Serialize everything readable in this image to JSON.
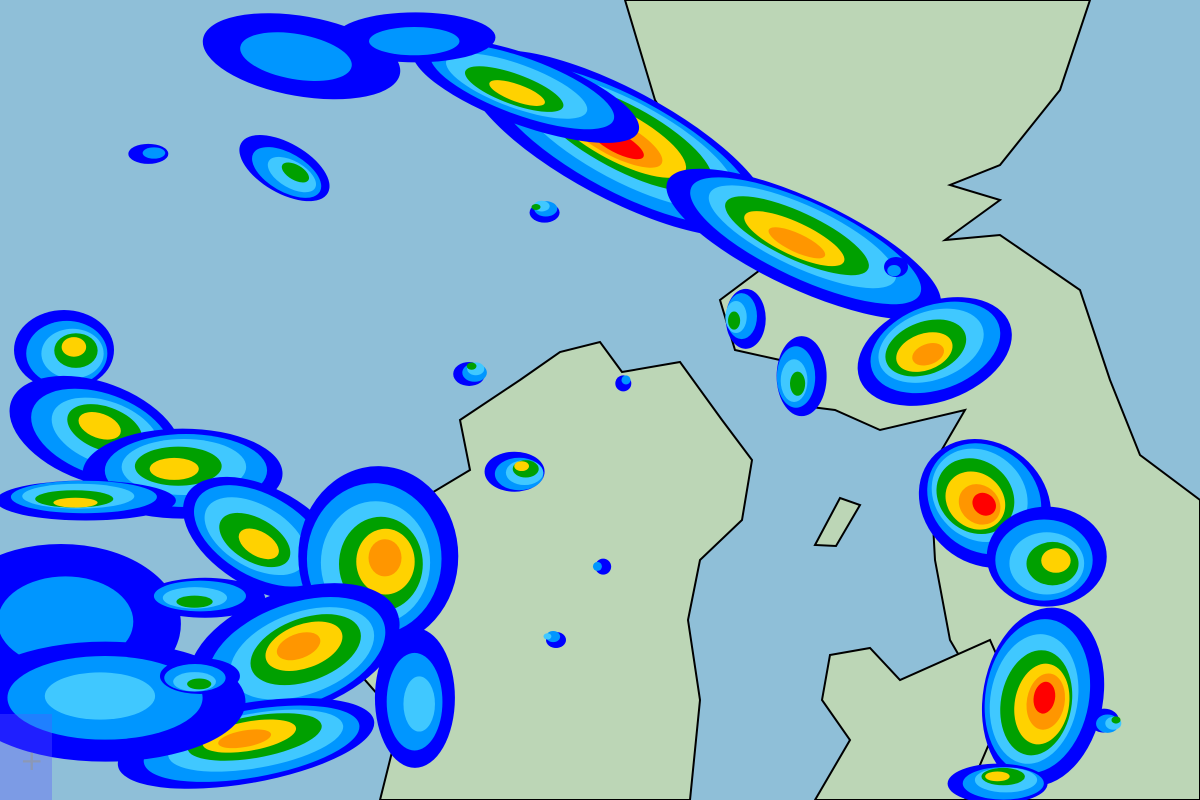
{
  "map": {
    "type": "precipitation-radar",
    "colors": {
      "sea": "#8fbfd8",
      "land": "#bcd6b6",
      "coastline": "#000000",
      "rain_levels": [
        "#0000ff",
        "#0096ff",
        "#40c8ff",
        "#00a000",
        "#ffd200",
        "#ff9600",
        "#ff0000"
      ]
    },
    "controls": {
      "crosshair_icon": "plus-icon"
    }
  }
}
